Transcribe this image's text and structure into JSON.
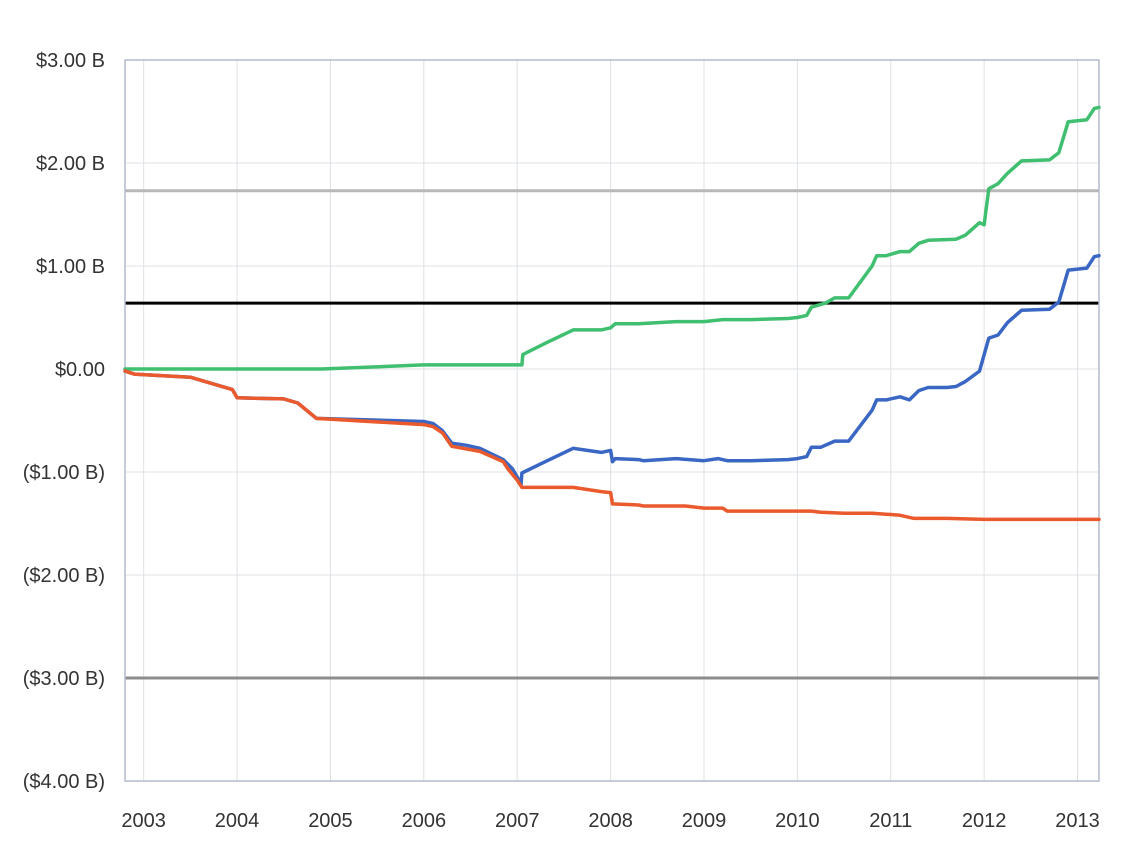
{
  "chart_data": {
    "type": "line",
    "title": "",
    "xlabel": "",
    "ylabel": "",
    "xlim": [
      2002.8,
      2013.23
    ],
    "ylim": [
      -4.0,
      3.0
    ],
    "grid": true,
    "legend": "none",
    "x_ticks": [
      {
        "value": 2003,
        "label": "2003"
      },
      {
        "value": 2004,
        "label": "2004"
      },
      {
        "value": 2005,
        "label": "2005"
      },
      {
        "value": 2006,
        "label": "2006"
      },
      {
        "value": 2007,
        "label": "2007"
      },
      {
        "value": 2008,
        "label": "2008"
      },
      {
        "value": 2009,
        "label": "2009"
      },
      {
        "value": 2010,
        "label": "2010"
      },
      {
        "value": 2011,
        "label": "2011"
      },
      {
        "value": 2012,
        "label": "2012"
      },
      {
        "value": 2013,
        "label": "2013"
      }
    ],
    "y_ticks": [
      {
        "value": 3,
        "label": "$3.00 B"
      },
      {
        "value": 2,
        "label": "$2.00 B"
      },
      {
        "value": 1,
        "label": "$1.00 B"
      },
      {
        "value": 0,
        "label": "$0.00"
      },
      {
        "value": -1,
        "label": "($1.00 B)"
      },
      {
        "value": -2,
        "label": "($2.00 B)"
      },
      {
        "value": -3,
        "label": "($3.00 B)"
      },
      {
        "value": -4,
        "label": "($4.00 B)"
      }
    ],
    "reference_lines": [
      {
        "value": 1.73,
        "color": "#b8b8b8"
      },
      {
        "value": 0.64,
        "color": "#000000"
      },
      {
        "value": -3.0,
        "color": "#8c8c8c"
      }
    ],
    "series": [
      {
        "color": "#3fbf6f",
        "points": [
          [
            2002.8,
            0.0
          ],
          [
            2004.5,
            0.0
          ],
          [
            2004.9,
            0.0
          ],
          [
            2006.0,
            0.04
          ],
          [
            2007.05,
            0.04
          ],
          [
            2007.06,
            0.14
          ],
          [
            2007.3,
            0.25
          ],
          [
            2007.6,
            0.38
          ],
          [
            2007.9,
            0.38
          ],
          [
            2008.0,
            0.4
          ],
          [
            2008.05,
            0.44
          ],
          [
            2008.3,
            0.44
          ],
          [
            2008.7,
            0.46
          ],
          [
            2009.0,
            0.46
          ],
          [
            2009.2,
            0.48
          ],
          [
            2009.5,
            0.48
          ],
          [
            2009.9,
            0.49
          ],
          [
            2010.0,
            0.5
          ],
          [
            2010.1,
            0.52
          ],
          [
            2010.15,
            0.6
          ],
          [
            2010.3,
            0.64
          ],
          [
            2010.4,
            0.69
          ],
          [
            2010.55,
            0.69
          ],
          [
            2010.8,
            1.0
          ],
          [
            2010.85,
            1.1
          ],
          [
            2010.95,
            1.1
          ],
          [
            2011.1,
            1.14
          ],
          [
            2011.2,
            1.14
          ],
          [
            2011.3,
            1.22
          ],
          [
            2011.4,
            1.25
          ],
          [
            2011.7,
            1.26
          ],
          [
            2011.8,
            1.3
          ],
          [
            2011.95,
            1.42
          ],
          [
            2012.0,
            1.4
          ],
          [
            2012.05,
            1.75
          ],
          [
            2012.15,
            1.8
          ],
          [
            2012.25,
            1.9
          ],
          [
            2012.4,
            2.02
          ],
          [
            2012.7,
            2.03
          ],
          [
            2012.8,
            2.1
          ],
          [
            2012.9,
            2.4
          ],
          [
            2013.1,
            2.42
          ],
          [
            2013.18,
            2.53
          ],
          [
            2013.23,
            2.54
          ]
        ]
      },
      {
        "color": "#3a66c4",
        "points": [
          [
            2002.8,
            -0.02
          ],
          [
            2002.9,
            -0.05
          ],
          [
            2003.5,
            -0.08
          ],
          [
            2003.95,
            -0.2
          ],
          [
            2004.0,
            -0.28
          ],
          [
            2004.5,
            -0.29
          ],
          [
            2004.65,
            -0.33
          ],
          [
            2004.85,
            -0.48
          ],
          [
            2006.0,
            -0.51
          ],
          [
            2006.1,
            -0.53
          ],
          [
            2006.2,
            -0.6
          ],
          [
            2006.3,
            -0.72
          ],
          [
            2006.45,
            -0.74
          ],
          [
            2006.6,
            -0.77
          ],
          [
            2006.85,
            -0.88
          ],
          [
            2006.95,
            -0.97
          ],
          [
            2007.02,
            -1.08
          ],
          [
            2007.04,
            -1.13
          ],
          [
            2007.05,
            -1.01
          ],
          [
            2007.3,
            -0.9
          ],
          [
            2007.6,
            -0.77
          ],
          [
            2007.75,
            -0.79
          ],
          [
            2007.9,
            -0.81
          ],
          [
            2008.0,
            -0.79
          ],
          [
            2008.02,
            -0.9
          ],
          [
            2008.05,
            -0.87
          ],
          [
            2008.3,
            -0.88
          ],
          [
            2008.35,
            -0.89
          ],
          [
            2008.7,
            -0.87
          ],
          [
            2009.0,
            -0.89
          ],
          [
            2009.15,
            -0.87
          ],
          [
            2009.25,
            -0.89
          ],
          [
            2009.5,
            -0.89
          ],
          [
            2009.9,
            -0.88
          ],
          [
            2010.0,
            -0.87
          ],
          [
            2010.1,
            -0.85
          ],
          [
            2010.15,
            -0.76
          ],
          [
            2010.25,
            -0.76
          ],
          [
            2010.4,
            -0.7
          ],
          [
            2010.55,
            -0.7
          ],
          [
            2010.8,
            -0.4
          ],
          [
            2010.85,
            -0.3
          ],
          [
            2010.95,
            -0.3
          ],
          [
            2011.1,
            -0.27
          ],
          [
            2011.2,
            -0.3
          ],
          [
            2011.3,
            -0.21
          ],
          [
            2011.4,
            -0.18
          ],
          [
            2011.6,
            -0.18
          ],
          [
            2011.7,
            -0.17
          ],
          [
            2011.8,
            -0.12
          ],
          [
            2011.95,
            -0.02
          ],
          [
            2012.05,
            0.3
          ],
          [
            2012.15,
            0.33
          ],
          [
            2012.25,
            0.45
          ],
          [
            2012.4,
            0.57
          ],
          [
            2012.7,
            0.58
          ],
          [
            2012.8,
            0.65
          ],
          [
            2012.9,
            0.96
          ],
          [
            2013.1,
            0.98
          ],
          [
            2013.18,
            1.09
          ],
          [
            2013.23,
            1.1
          ]
        ]
      },
      {
        "color": "#ea5a2d",
        "points": [
          [
            2002.8,
            -0.02
          ],
          [
            2002.9,
            -0.05
          ],
          [
            2003.5,
            -0.08
          ],
          [
            2003.95,
            -0.2
          ],
          [
            2004.0,
            -0.28
          ],
          [
            2004.5,
            -0.29
          ],
          [
            2004.65,
            -0.33
          ],
          [
            2004.85,
            -0.48
          ],
          [
            2006.0,
            -0.54
          ],
          [
            2006.1,
            -0.56
          ],
          [
            2006.2,
            -0.62
          ],
          [
            2006.3,
            -0.75
          ],
          [
            2006.6,
            -0.8
          ],
          [
            2006.85,
            -0.9
          ],
          [
            2006.9,
            -0.97
          ],
          [
            2007.0,
            -1.08
          ],
          [
            2007.05,
            -1.15
          ],
          [
            2007.6,
            -1.15
          ],
          [
            2007.9,
            -1.19
          ],
          [
            2008.0,
            -1.2
          ],
          [
            2008.02,
            -1.31
          ],
          [
            2008.3,
            -1.32
          ],
          [
            2008.35,
            -1.33
          ],
          [
            2008.8,
            -1.33
          ],
          [
            2009.0,
            -1.35
          ],
          [
            2009.2,
            -1.35
          ],
          [
            2009.25,
            -1.38
          ],
          [
            2010.0,
            -1.38
          ],
          [
            2010.15,
            -1.38
          ],
          [
            2010.25,
            -1.39
          ],
          [
            2010.5,
            -1.4
          ],
          [
            2010.8,
            -1.4
          ],
          [
            2010.95,
            -1.41
          ],
          [
            2011.1,
            -1.42
          ],
          [
            2011.25,
            -1.45
          ],
          [
            2011.6,
            -1.45
          ],
          [
            2012.0,
            -1.46
          ],
          [
            2013.23,
            -1.46
          ]
        ]
      }
    ]
  }
}
